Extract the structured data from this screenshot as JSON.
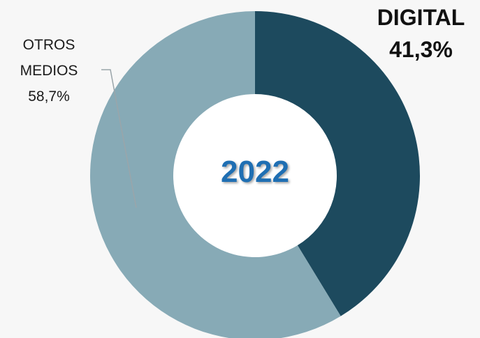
{
  "chart_data": {
    "type": "pie",
    "subtype": "donut",
    "center_label": "2022",
    "slices": [
      {
        "name": "DIGITAL",
        "value": 41.3,
        "value_label": "41,3%",
        "color": "#1d4a5e"
      },
      {
        "name": "OTROS MEDIOS",
        "name_lines": [
          "OTROS",
          "MEDIOS"
        ],
        "value": 58.7,
        "value_label": "58,7%",
        "color": "#87aab6"
      }
    ],
    "center_label_color": "#1f6fb3",
    "background_color": "#f7f7f7"
  }
}
